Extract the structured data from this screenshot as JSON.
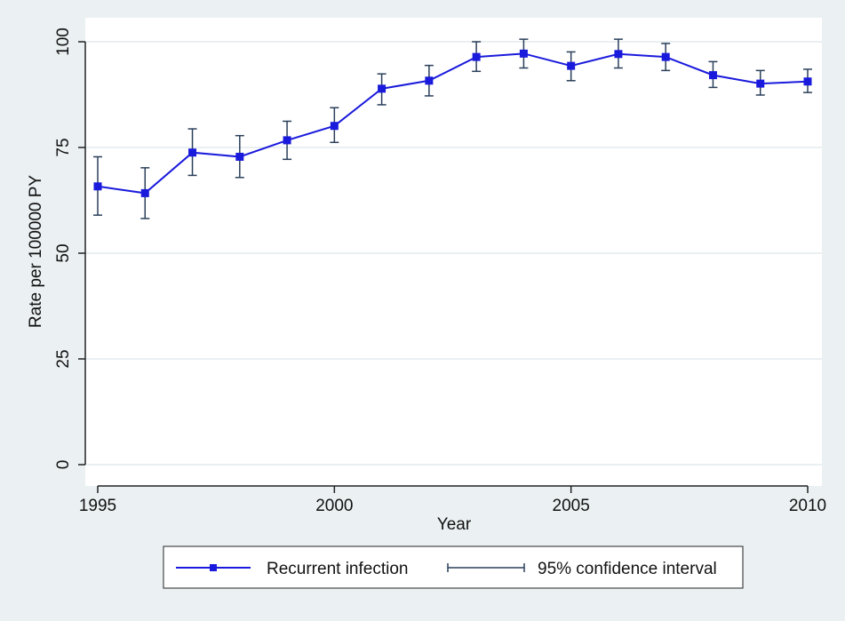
{
  "chart_data": {
    "type": "line",
    "xlabel": "Year",
    "ylabel": "Rate per 100000 PY",
    "xlim": [
      1995,
      2010
    ],
    "ylim": [
      0,
      100
    ],
    "xticks": [
      1995,
      2000,
      2005,
      2010
    ],
    "yticks": [
      0,
      25,
      50,
      75,
      100
    ],
    "grid": "horizontal",
    "legend_position": "bottom",
    "series": [
      {
        "name": "Recurrent infection",
        "color": "#1a1adc",
        "marker": "square",
        "x": [
          1995,
          1996,
          1997,
          1998,
          1999,
          2000,
          2001,
          2002,
          2003,
          2004,
          2005,
          2006,
          2007,
          2008,
          2009,
          2010
        ],
        "y": [
          65.8,
          64.2,
          73.8,
          72.8,
          76.7,
          80.1,
          88.9,
          90.8,
          96.4,
          97.2,
          94.3,
          97.1,
          96.4,
          92.1,
          90.1,
          90.6
        ]
      }
    ],
    "error_bars": {
      "name": "95% confidence interval",
      "color": "#2a3f5a",
      "low": [
        59.0,
        58.2,
        68.4,
        67.9,
        72.2,
        76.2,
        85.1,
        87.2,
        93.0,
        93.8,
        90.8,
        93.8,
        93.2,
        89.2,
        87.4,
        88.0
      ],
      "high": [
        72.8,
        70.2,
        79.4,
        77.8,
        81.2,
        84.4,
        92.4,
        94.4,
        100.0,
        100.6,
        97.6,
        100.6,
        99.6,
        95.3,
        93.2,
        93.5
      ]
    }
  }
}
